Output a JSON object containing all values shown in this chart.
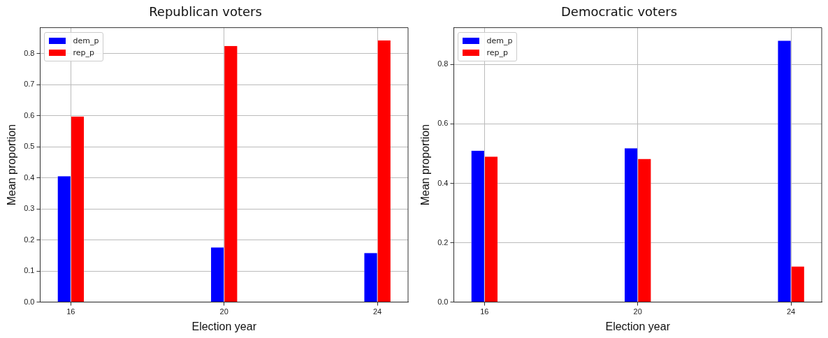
{
  "chart_data": [
    {
      "type": "bar",
      "title": "Republican voters",
      "xlabel": "Election year",
      "ylabel": "Mean proportion",
      "x": [
        16,
        20,
        24
      ],
      "series": [
        {
          "name": "dem_p",
          "color": "#0000ff",
          "values": [
            0.405,
            0.176,
            0.158
          ]
        },
        {
          "name": "rep_p",
          "color": "#ff0000",
          "values": [
            0.597,
            0.824,
            0.842
          ]
        }
      ],
      "xlim": [
        15.2,
        24.8
      ],
      "xticks": [
        16,
        20,
        24
      ],
      "ylim": [
        0,
        0.883
      ],
      "yticks": [
        {
          "value": 0,
          "label": "0.0"
        },
        0.1,
        0.2,
        0.3,
        0.4,
        0.5,
        0.6,
        0.7,
        0.8
      ],
      "grid": true,
      "legend": "top left"
    },
    {
      "type": "bar",
      "title": "Democratic voters",
      "xlabel": "Election year",
      "ylabel": "Mean proportion",
      "x": [
        16,
        20,
        24
      ],
      "series": [
        {
          "name": "dem_p",
          "color": "#0000ff",
          "values": [
            0.51,
            0.518,
            0.88
          ]
        },
        {
          "name": "rep_p",
          "color": "#ff0000",
          "values": [
            0.49,
            0.482,
            0.12
          ]
        }
      ],
      "xlim": [
        15.2,
        24.8
      ],
      "xticks": [
        16,
        20,
        24
      ],
      "ylim": [
        0,
        0.924
      ],
      "yticks": [
        {
          "value": 0,
          "label": "0.0"
        },
        0.2,
        0.4,
        0.6,
        0.8
      ],
      "grid": true,
      "legend": "top left"
    }
  ]
}
